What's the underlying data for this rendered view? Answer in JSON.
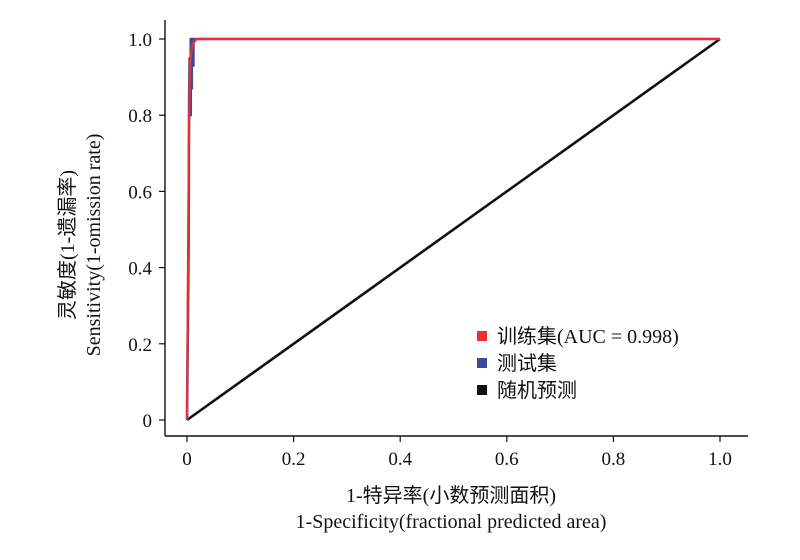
{
  "chart_data": {
    "type": "line",
    "xlabel_cn": "1-特异率(小数预测面积)",
    "xlabel_en": "1-Specificity(fractional predicted area)",
    "ylabel_cn": "灵敏度(1-遗漏率)",
    "ylabel_en": "Sensitivity(1-omission rate)",
    "xlim": [
      0,
      1.0
    ],
    "ylim": [
      0,
      1.0
    ],
    "x_ticks": [
      "0",
      "0.2",
      "0.4",
      "0.6",
      "0.8",
      "1.0"
    ],
    "y_ticks": [
      "0",
      "0.2",
      "0.4",
      "0.6",
      "0.8",
      "1.0"
    ],
    "legend_position": "bottom-right",
    "grid": false,
    "series": [
      {
        "name": "训练集(AUC = 0.998)",
        "color": "#e8312f",
        "x": [
          0,
          0.002,
          0.004,
          0.006,
          0.008,
          0.012,
          0.018,
          1.0
        ],
        "y": [
          0,
          0.45,
          0.8,
          0.93,
          0.97,
          0.99,
          1.0,
          1.0
        ]
      },
      {
        "name": "测试集",
        "color": "#3d4a9c",
        "x": [
          0,
          0.003,
          0.004,
          0.005,
          0.006,
          0.006,
          0.007,
          0.007,
          0.008,
          0.008,
          0.009,
          0.009,
          0.01,
          0.01,
          0.012,
          0.012,
          0.014,
          0.015,
          1.0
        ],
        "y": [
          0,
          0.45,
          0.85,
          0.95,
          0.95,
          0.8,
          0.8,
          1.0,
          1.0,
          0.87,
          0.87,
          1.0,
          1.0,
          0.93,
          0.93,
          1.0,
          1.0,
          1.0,
          1.0
        ]
      },
      {
        "name": "随机预测",
        "color": "#111111",
        "x": [
          0,
          1.0
        ],
        "y": [
          0,
          1.0
        ]
      }
    ]
  }
}
